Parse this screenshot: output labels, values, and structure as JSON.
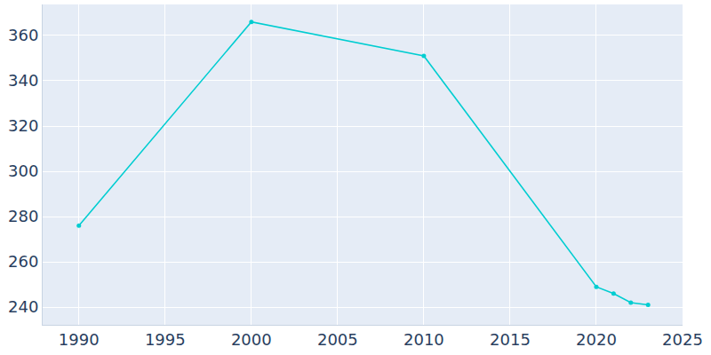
{
  "chart_data": {
    "type": "line",
    "x": [
      1990,
      2000,
      2010,
      2020,
      2021,
      2022,
      2023
    ],
    "values": [
      276,
      366,
      351,
      249,
      246,
      242,
      241
    ],
    "color": "#00cdd1",
    "marker": "circle",
    "xlim": [
      1987.9,
      2025
    ],
    "xticks": [
      1990,
      1995,
      2000,
      2005,
      2010,
      2015,
      2020,
      2025
    ],
    "ylim": [
      232.2,
      373.7
    ],
    "yticks": [
      240,
      260,
      280,
      300,
      320,
      340,
      360
    ],
    "grid": true
  }
}
